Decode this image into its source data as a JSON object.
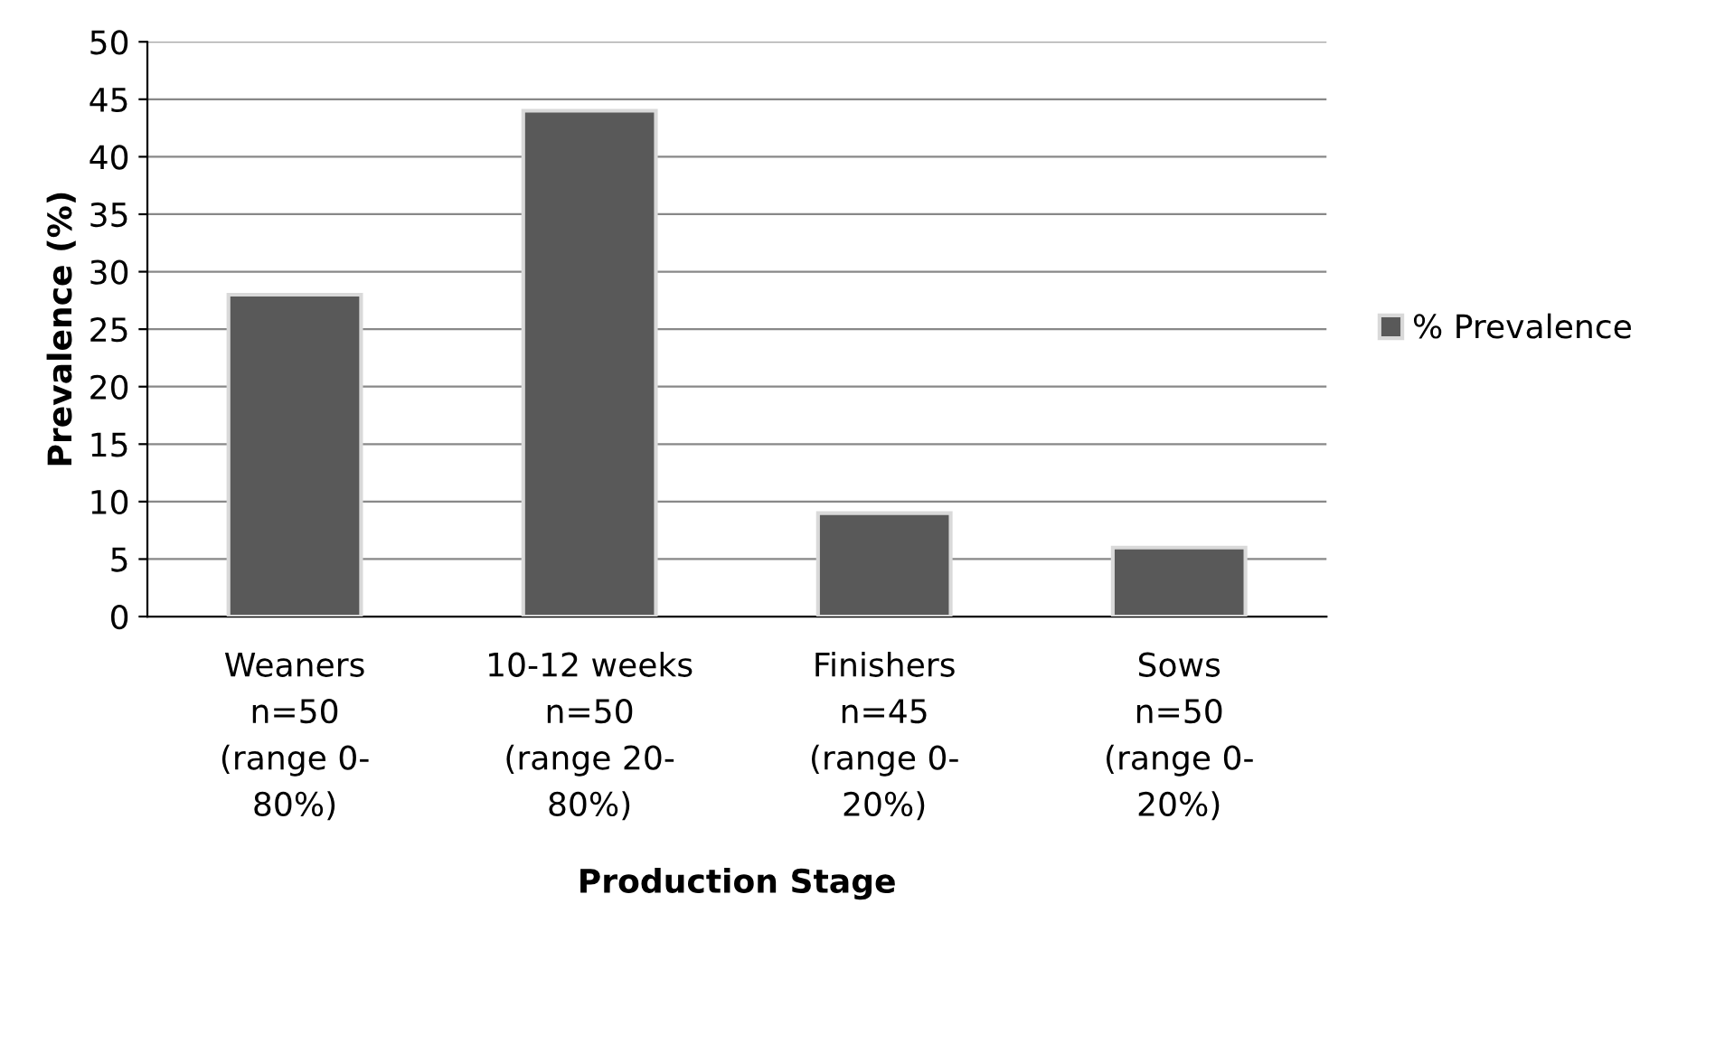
{
  "chart_data": {
    "type": "bar",
    "xlabel": "Production Stage",
    "ylabel": "Prevalence (%)",
    "categories": [
      "Weaners\nn=50\n(range 0-\n80%)",
      "10-12 weeks\nn=50\n(range 20-\n80%)",
      "Finishers\nn=45\n(range 0-\n20%)",
      "Sows\nn=50\n(range 0-\n20%)"
    ],
    "series": [
      {
        "name": "% Prevalence",
        "color": "#595959",
        "values": [
          28,
          44,
          9,
          6
        ]
      }
    ],
    "ylim": [
      0,
      50
    ],
    "yticks": [
      0,
      5,
      10,
      15,
      20,
      25,
      30,
      35,
      40,
      45,
      50
    ],
    "grid": "y",
    "legend": "right"
  }
}
